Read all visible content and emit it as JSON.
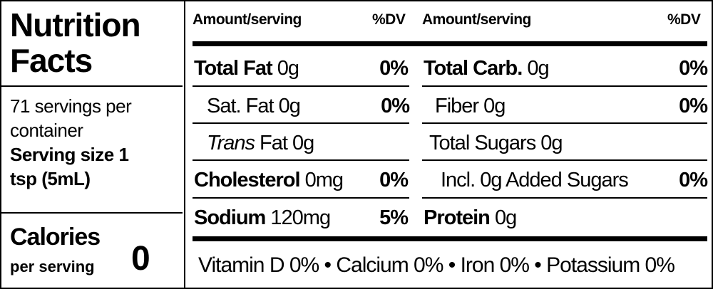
{
  "left": {
    "title": "Nutrition Facts",
    "servings": "71 servings per container",
    "serving_size": "Serving size 1 tsp (5mL)",
    "calories_label": "Calories",
    "calories_sub": "per serving",
    "calories_value": "0"
  },
  "middle": {
    "header": {
      "amount": "Amount/serving",
      "dv": "%DV"
    },
    "rows": [
      {
        "label": "Total Fat",
        "amount": "0g",
        "dv": "0%"
      },
      {
        "label": "Sat. Fat",
        "amount": "0g",
        "dv": "0%"
      },
      {
        "label": "Trans",
        "amount": "Fat 0g"
      },
      {
        "label": "Cholesterol",
        "amount": "0mg",
        "dv": "0%"
      },
      {
        "label": "Sodium",
        "amount": "120mg",
        "dv": "5%"
      }
    ]
  },
  "right": {
    "header": {
      "amount": "Amount/serving",
      "dv": "%DV"
    },
    "rows": [
      {
        "label": "Total Carb.",
        "amount": "0g",
        "dv": "0%"
      },
      {
        "label": "Fiber",
        "amount": "0g",
        "dv": "0%"
      },
      {
        "label": "Total Sugars",
        "amount": "0g"
      },
      {
        "label": "Incl. 0g Added Sugars",
        "dv": "0%"
      },
      {
        "label": "Protein",
        "amount": "0g"
      }
    ]
  },
  "footer": "Vitamin D 0% • Calcium 0% • Iron 0% • Potassium 0%"
}
